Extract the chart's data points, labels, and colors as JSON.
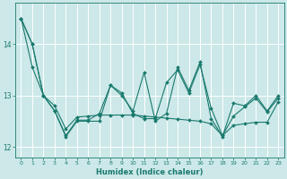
{
  "xlabel": "Humidex (Indice chaleur)",
  "background_color": "#cce8e8",
  "grid_color": "#ffffff",
  "line_color": "#1a7a6e",
  "x_values": [
    0,
    1,
    2,
    3,
    4,
    5,
    6,
    7,
    8,
    9,
    10,
    11,
    12,
    13,
    14,
    15,
    16,
    17,
    18,
    19,
    20,
    21,
    22,
    23
  ],
  "line1": [
    14.5,
    14.0,
    13.0,
    12.7,
    12.2,
    12.5,
    12.5,
    12.5,
    13.2,
    13.0,
    12.7,
    13.45,
    12.5,
    12.65,
    13.55,
    13.1,
    13.65,
    12.55,
    12.2,
    12.85,
    12.8,
    13.0,
    12.7,
    13.0
  ],
  "line2": [
    14.5,
    14.0,
    13.0,
    12.7,
    12.22,
    12.52,
    12.52,
    12.65,
    13.2,
    13.05,
    12.65,
    12.55,
    12.55,
    13.25,
    13.5,
    13.05,
    13.6,
    12.75,
    12.22,
    12.6,
    12.78,
    12.95,
    12.68,
    12.95
  ],
  "line3": [
    14.5,
    13.55,
    13.0,
    12.8,
    12.35,
    12.58,
    12.6,
    12.62,
    12.62,
    12.62,
    12.62,
    12.6,
    12.58,
    12.56,
    12.54,
    12.52,
    12.5,
    12.45,
    12.22,
    12.42,
    12.45,
    12.48,
    12.48,
    12.88
  ],
  "ylim": [
    11.8,
    14.8
  ],
  "yticks": [
    12,
    13,
    14
  ],
  "xlim": [
    -0.5,
    23.5
  ],
  "figwidth": 3.2,
  "figheight": 2.0,
  "dpi": 100
}
